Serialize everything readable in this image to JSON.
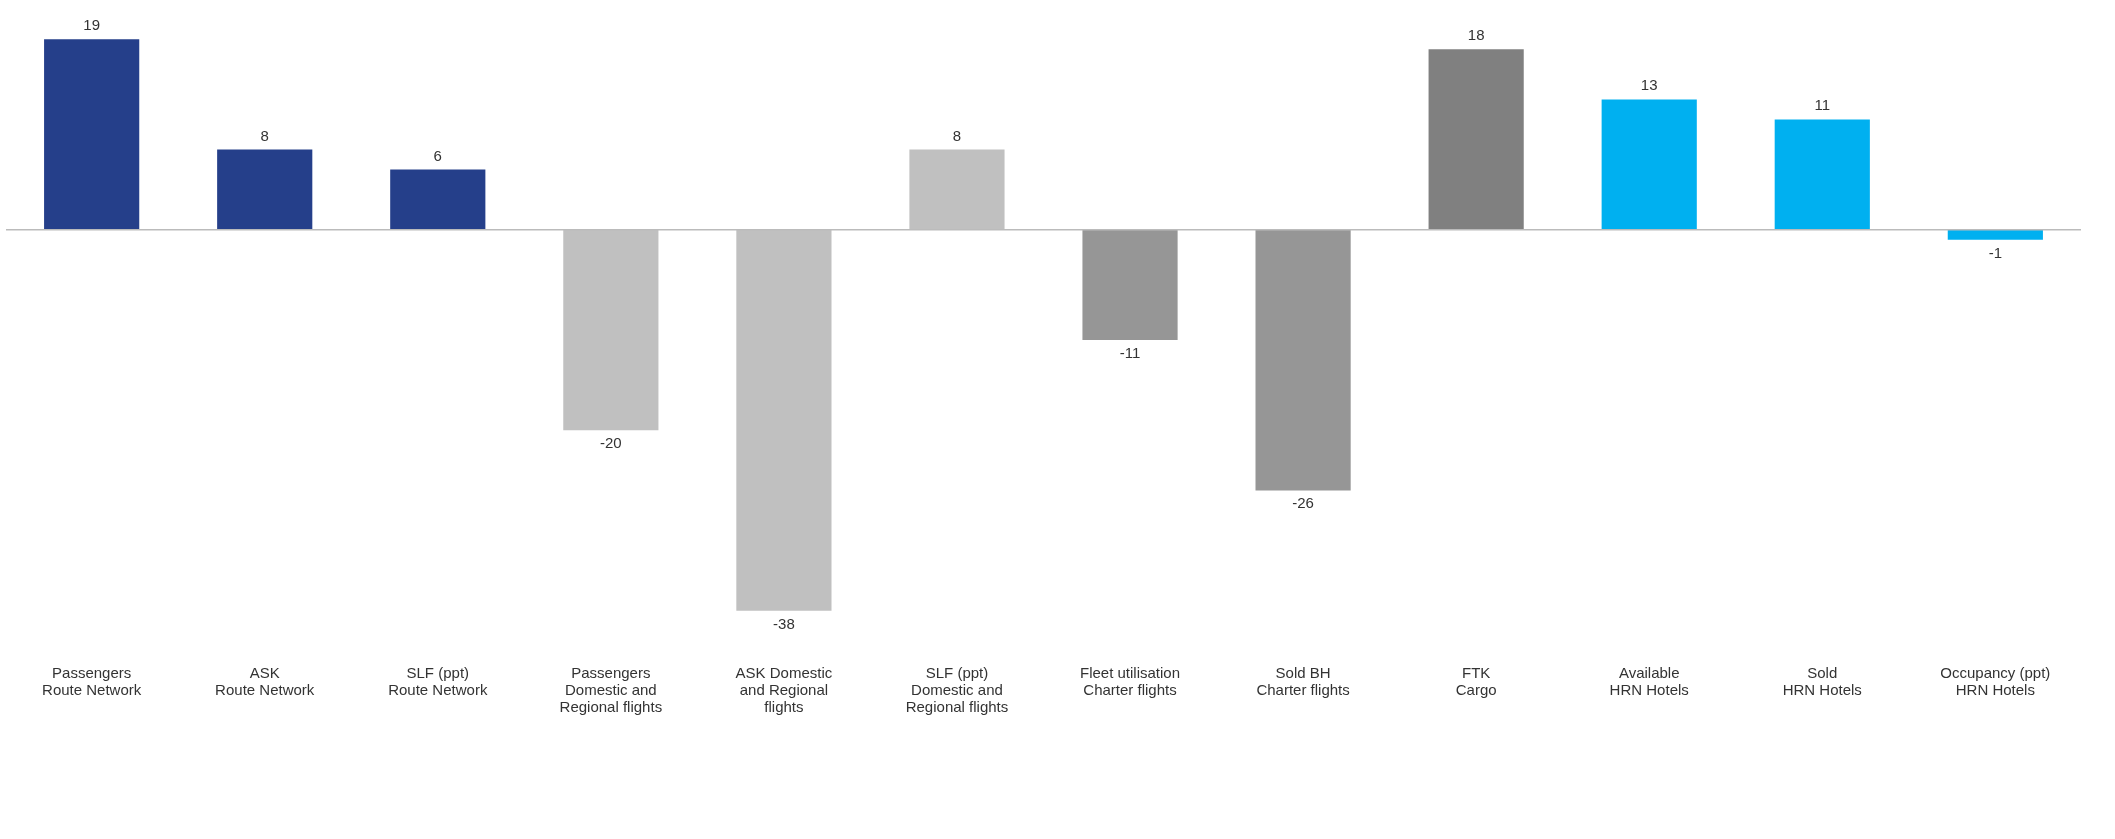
{
  "chart_data": {
    "type": "bar",
    "categories": [
      "Passengers\nRoute Network",
      "ASK\nRoute Network",
      "SLF (ppt)\nRoute Network",
      "Passengers\nDomestic and\nRegional flights",
      "ASK Domestic\nand Regional\nflights",
      "SLF (ppt)\nDomestic and\nRegional flights",
      "Fleet utilisation\nCharter flights",
      "Sold BH\nCharter flights",
      "FTK\nCargo",
      "Available\nHRN Hotels",
      "Sold\nHRN Hotels",
      "Occupancy (ppt)\nHRN Hotels"
    ],
    "values": [
      19,
      8,
      6,
      -20,
      -38,
      8,
      -11,
      -26,
      18,
      13,
      11,
      -1
    ],
    "colors": [
      "#253f8a",
      "#253f8a",
      "#253f8a",
      "#c0c0c0",
      "#c0c0c0",
      "#c0c0c0",
      "#969696",
      "#969696",
      "#808080",
      "#00b0f0",
      "#00b0f0",
      "#00b0f0"
    ],
    "data_labels": true
  }
}
